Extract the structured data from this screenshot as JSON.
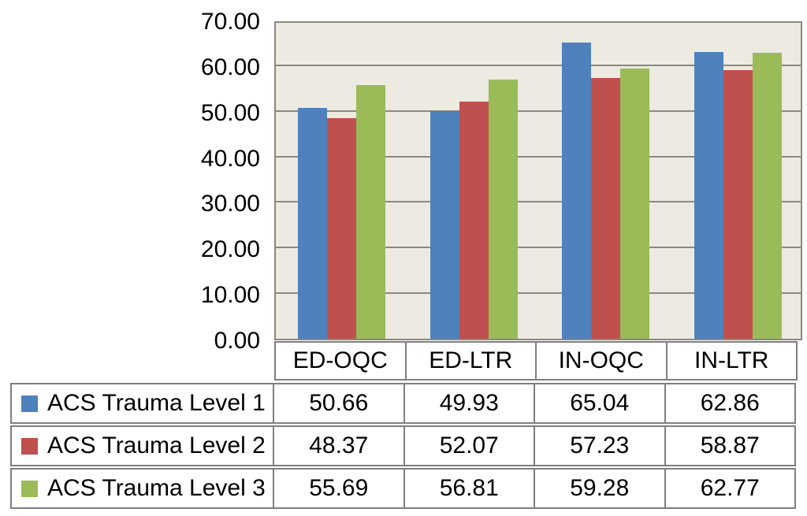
{
  "chart_data": {
    "type": "bar",
    "title": "",
    "xlabel": "",
    "ylabel": "",
    "categories": [
      "ED-OQC",
      "ED-LTR",
      "IN-OQC",
      "IN-LTR"
    ],
    "series": [
      {
        "name": "ACS Trauma Level 1",
        "color": "#4F81BD",
        "values": [
          50.66,
          49.93,
          65.04,
          62.86
        ]
      },
      {
        "name": "ACS Trauma Level 2",
        "color": "#C0504D",
        "values": [
          48.37,
          52.07,
          57.23,
          58.87
        ]
      },
      {
        "name": "ACS Trauma Level 3",
        "color": "#9BBB59",
        "values": [
          55.69,
          56.81,
          59.28,
          62.77
        ]
      }
    ],
    "cell_values": [
      [
        "50.66",
        "49.93",
        "65.04",
        "62.86"
      ],
      [
        "48.37",
        "52.07",
        "57.23",
        "58.87"
      ],
      [
        "55.69",
        "56.81",
        "59.28",
        "62.77"
      ]
    ],
    "ylim": [
      0,
      70
    ],
    "ytick_step": 10,
    "ytick_labels": [
      "0.00",
      "10.00",
      "20.00",
      "30.00",
      "40.00",
      "50.00",
      "60.00",
      "70.00"
    ],
    "grid": true,
    "legend_position": "left-of-data-table",
    "colors": {
      "plot_background": "#EDEAE1",
      "gridline": "#8A887F",
      "table_border": "#7F7F7F",
      "text": "#000000",
      "page_background": "#FFFFFF"
    }
  }
}
